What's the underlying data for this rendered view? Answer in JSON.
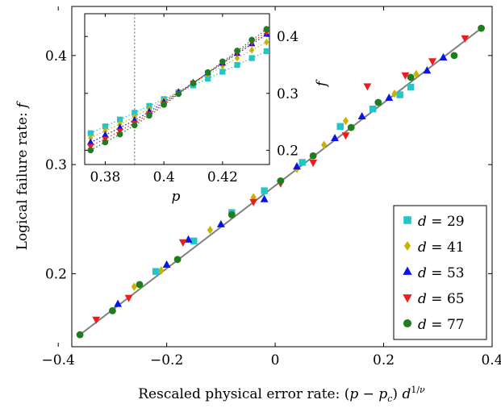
{
  "chart_data": {
    "type": "scatter",
    "xlabel": "Rescaled physical error rate: (p − p_c) d^{1/ν}",
    "ylabel": "Logical failure rate: f",
    "xlim": [
      -0.375,
      0.4
    ],
    "ylim": [
      0.133,
      0.445
    ],
    "xticks": [
      -0.4,
      -0.2,
      0,
      0.2,
      0.4
    ],
    "xtick_labels": [
      "−0.4",
      "−0.2",
      "0",
      "0.2",
      "0.4"
    ],
    "yticks": [
      0.2,
      0.3,
      0.4
    ],
    "ytick_labels": [
      "0.2",
      "0.3",
      "0.4"
    ],
    "grid": false,
    "legend_position": "bottom-right",
    "fit_line": {
      "x": [
        -0.36,
        0.38
      ],
      "y": [
        0.144,
        0.425
      ]
    },
    "series": [
      {
        "name": "d = 29",
        "color": "#22c5c8",
        "marker": "square",
        "x": [
          -0.22,
          -0.15,
          -0.08,
          -0.02,
          0.05,
          0.12,
          0.18,
          0.23,
          0.25
        ],
        "y": [
          0.202,
          0.23,
          0.256,
          0.276,
          0.302,
          0.335,
          0.351,
          0.364,
          0.371
        ]
      },
      {
        "name": "d = 41",
        "color": "#c8b400",
        "marker": "diamond",
        "x": [
          -0.26,
          -0.21,
          -0.12,
          -0.04,
          0.04,
          0.09,
          0.13,
          0.22,
          0.26
        ],
        "y": [
          0.188,
          0.203,
          0.24,
          0.27,
          0.296,
          0.318,
          0.34,
          0.365,
          0.383
        ]
      },
      {
        "name": "d = 53",
        "color": "#0a14e6",
        "marker": "triangle-up",
        "x": [
          -0.29,
          -0.2,
          -0.16,
          -0.1,
          -0.02,
          0.04,
          0.11,
          0.16,
          0.21,
          0.28,
          0.31
        ],
        "y": [
          0.172,
          0.208,
          0.231,
          0.245,
          0.268,
          0.298,
          0.324,
          0.344,
          0.361,
          0.386,
          0.398
        ]
      },
      {
        "name": "d = 65",
        "color": "#ee1c1c",
        "marker": "triangle-down",
        "x": [
          -0.33,
          -0.27,
          -0.17,
          -0.04,
          0.01,
          0.07,
          0.13,
          0.17,
          0.24,
          0.29,
          0.35
        ],
        "y": [
          0.158,
          0.178,
          0.229,
          0.266,
          0.283,
          0.302,
          0.327,
          0.372,
          0.382,
          0.395,
          0.416
        ]
      },
      {
        "name": "d = 77",
        "color": "#1e7d1e",
        "marker": "circle",
        "x": [
          -0.36,
          -0.3,
          -0.25,
          -0.18,
          -0.08,
          0.01,
          0.07,
          0.14,
          0.19,
          0.25,
          0.33,
          0.38
        ],
        "y": [
          0.144,
          0.166,
          0.19,
          0.213,
          0.254,
          0.285,
          0.308,
          0.334,
          0.357,
          0.38,
          0.4,
          0.425
        ]
      }
    ],
    "inset": {
      "type": "scatter",
      "xlabel": "p",
      "ylabel": "f",
      "xlim": [
        0.373,
        0.436
      ],
      "ylim": [
        0.175,
        0.44
      ],
      "xticks": [
        0.38,
        0.4,
        0.42
      ],
      "xtick_labels": [
        "0.38",
        "0.4",
        "0.42"
      ],
      "yticks": [
        0.2,
        0.3,
        0.4
      ],
      "ytick_labels": [
        "0.2",
        "0.3",
        "0.4"
      ],
      "threshold_line_x": 0.39,
      "series_x": [
        0.375,
        0.3775,
        0.38,
        0.3825,
        0.385,
        0.3875,
        0.39,
        0.3925,
        0.395,
        0.3975,
        0.4,
        0.4025,
        0.405,
        0.4075,
        0.41,
        0.4125,
        0.415,
        0.4175,
        0.42,
        0.4225,
        0.425,
        0.4275,
        0.43,
        0.4325,
        0.435
      ],
      "series": [
        {
          "name": "d = 29",
          "color": "#22c5c8",
          "marker": "square",
          "y": [
            0.23,
            0.236,
            0.242,
            0.248,
            0.254,
            0.26,
            0.266,
            0.272,
            0.278,
            0.284,
            0.29,
            0.296,
            0.302,
            0.308,
            0.314,
            0.32,
            0.326,
            0.332,
            0.338,
            0.344,
            0.35,
            0.356,
            0.362,
            0.368,
            0.374
          ]
        },
        {
          "name": "d = 41",
          "color": "#c8b400",
          "marker": "diamond",
          "y": [
            0.222,
            0.228,
            0.234,
            0.24,
            0.246,
            0.252,
            0.259,
            0.266,
            0.273,
            0.28,
            0.288,
            0.295,
            0.303,
            0.31,
            0.318,
            0.325,
            0.333,
            0.34,
            0.348,
            0.355,
            0.362,
            0.369,
            0.376,
            0.383,
            0.39
          ]
        },
        {
          "name": "d = 53",
          "color": "#0a14e6",
          "marker": "triangle-up",
          "y": [
            0.214,
            0.22,
            0.227,
            0.233,
            0.24,
            0.246,
            0.253,
            0.26,
            0.268,
            0.276,
            0.285,
            0.293,
            0.302,
            0.31,
            0.319,
            0.327,
            0.336,
            0.344,
            0.353,
            0.361,
            0.37,
            0.378,
            0.387,
            0.395,
            0.404
          ]
        },
        {
          "name": "d = 65",
          "color": "#ee1c1c",
          "marker": "triangle-down",
          "y": [
            0.207,
            0.214,
            0.22,
            0.227,
            0.234,
            0.241,
            0.248,
            0.256,
            0.264,
            0.273,
            0.282,
            0.291,
            0.3,
            0.309,
            0.318,
            0.327,
            0.336,
            0.345,
            0.354,
            0.363,
            0.372,
            0.381,
            0.39,
            0.399,
            0.408
          ]
        },
        {
          "name": "d = 77",
          "color": "#1e7d1e",
          "marker": "circle",
          "y": [
            0.2,
            0.207,
            0.214,
            0.221,
            0.228,
            0.236,
            0.244,
            0.252,
            0.261,
            0.27,
            0.28,
            0.289,
            0.299,
            0.308,
            0.318,
            0.327,
            0.337,
            0.346,
            0.356,
            0.365,
            0.375,
            0.384,
            0.394,
            0.403,
            0.413
          ]
        }
      ]
    }
  }
}
